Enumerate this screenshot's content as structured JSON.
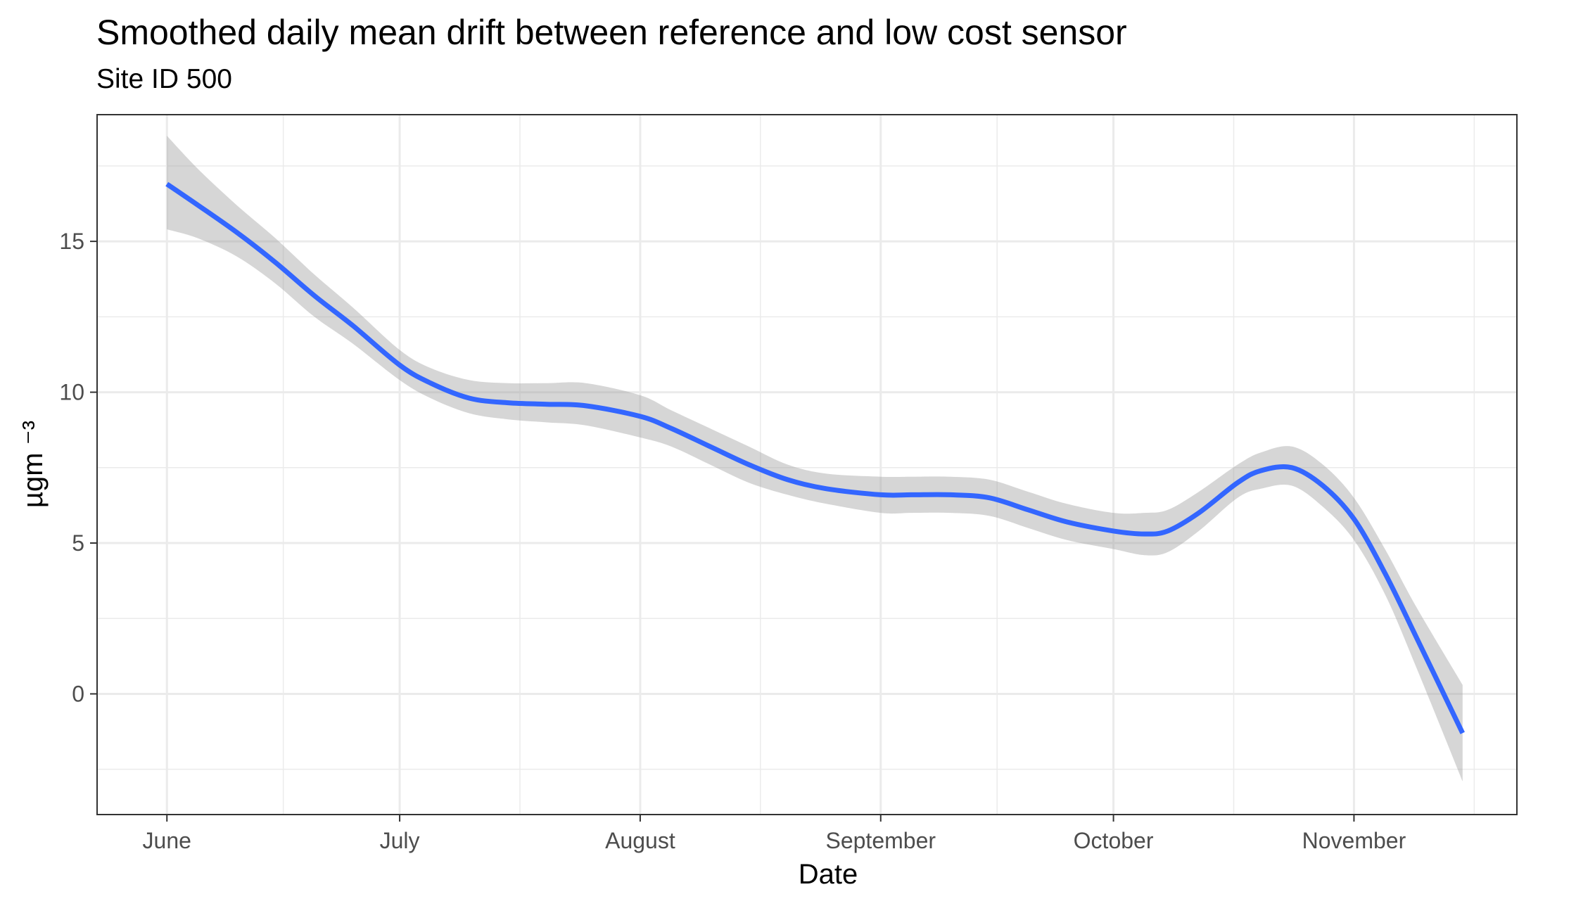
{
  "chart_data": {
    "type": "line",
    "title": "Smoothed daily mean drift between reference and low cost sensor",
    "subtitle": "Site ID 500",
    "xlabel": "Date",
    "ylabel": "µgm ⁻³",
    "x_tick_labels": [
      "June",
      "July",
      "August",
      "September",
      "October",
      "November"
    ],
    "x_ticks": [
      "2020-06-01",
      "2020-07-01",
      "2020-08-01",
      "2020-09-01",
      "2020-10-01",
      "2020-11-01"
    ],
    "xlim": [
      "2020-05-23",
      "2020-11-22"
    ],
    "y_ticks": [
      0,
      5,
      10,
      15
    ],
    "ylim": [
      -4,
      19.2
    ],
    "grid": true,
    "series": [
      {
        "color": "#3366FF",
        "band_color": "#999999",
        "points": [
          {
            "x": "2020-06-01",
            "y": 16.9,
            "lo": 15.4,
            "hi": 18.5
          },
          {
            "x": "2020-06-05",
            "y": 16.2,
            "lo": 15.1,
            "hi": 17.4
          },
          {
            "x": "2020-06-10",
            "y": 15.3,
            "lo": 14.5,
            "hi": 16.2
          },
          {
            "x": "2020-06-15",
            "y": 14.3,
            "lo": 13.6,
            "hi": 15.1
          },
          {
            "x": "2020-06-20",
            "y": 13.2,
            "lo": 12.5,
            "hi": 13.9
          },
          {
            "x": "2020-06-25",
            "y": 12.2,
            "lo": 11.6,
            "hi": 12.8
          },
          {
            "x": "2020-07-01",
            "y": 10.9,
            "lo": 10.4,
            "hi": 11.4
          },
          {
            "x": "2020-07-05",
            "y": 10.3,
            "lo": 9.8,
            "hi": 10.8
          },
          {
            "x": "2020-07-10",
            "y": 9.8,
            "lo": 9.3,
            "hi": 10.4
          },
          {
            "x": "2020-07-15",
            "y": 9.65,
            "lo": 9.1,
            "hi": 10.3
          },
          {
            "x": "2020-07-20",
            "y": 9.6,
            "lo": 9.0,
            "hi": 10.3
          },
          {
            "x": "2020-07-25",
            "y": 9.55,
            "lo": 8.9,
            "hi": 10.3
          },
          {
            "x": "2020-08-01",
            "y": 9.2,
            "lo": 8.5,
            "hi": 9.9
          },
          {
            "x": "2020-08-05",
            "y": 8.8,
            "lo": 8.2,
            "hi": 9.4
          },
          {
            "x": "2020-08-10",
            "y": 8.2,
            "lo": 7.6,
            "hi": 8.8
          },
          {
            "x": "2020-08-15",
            "y": 7.6,
            "lo": 7.0,
            "hi": 8.2
          },
          {
            "x": "2020-08-20",
            "y": 7.1,
            "lo": 6.6,
            "hi": 7.6
          },
          {
            "x": "2020-08-25",
            "y": 6.8,
            "lo": 6.3,
            "hi": 7.3
          },
          {
            "x": "2020-09-01",
            "y": 6.6,
            "lo": 6.0,
            "hi": 7.2
          },
          {
            "x": "2020-09-05",
            "y": 6.6,
            "lo": 6.0,
            "hi": 7.2
          },
          {
            "x": "2020-09-10",
            "y": 6.6,
            "lo": 6.0,
            "hi": 7.2
          },
          {
            "x": "2020-09-15",
            "y": 6.5,
            "lo": 5.9,
            "hi": 7.1
          },
          {
            "x": "2020-09-20",
            "y": 6.1,
            "lo": 5.5,
            "hi": 6.7
          },
          {
            "x": "2020-09-25",
            "y": 5.7,
            "lo": 5.1,
            "hi": 6.3
          },
          {
            "x": "2020-10-01",
            "y": 5.4,
            "lo": 4.8,
            "hi": 6.0
          },
          {
            "x": "2020-10-05",
            "y": 5.3,
            "lo": 4.6,
            "hi": 6.0
          },
          {
            "x": "2020-10-08",
            "y": 5.4,
            "lo": 4.7,
            "hi": 6.1
          },
          {
            "x": "2020-10-12",
            "y": 6.0,
            "lo": 5.4,
            "hi": 6.7
          },
          {
            "x": "2020-10-17",
            "y": 7.0,
            "lo": 6.5,
            "hi": 7.6
          },
          {
            "x": "2020-10-20",
            "y": 7.4,
            "lo": 6.8,
            "hi": 8.0
          },
          {
            "x": "2020-10-24",
            "y": 7.5,
            "lo": 6.9,
            "hi": 8.2
          },
          {
            "x": "2020-10-28",
            "y": 6.9,
            "lo": 6.2,
            "hi": 7.6
          },
          {
            "x": "2020-11-01",
            "y": 5.8,
            "lo": 5.1,
            "hi": 6.5
          },
          {
            "x": "2020-11-05",
            "y": 4.0,
            "lo": 3.3,
            "hi": 4.8
          },
          {
            "x": "2020-11-09",
            "y": 1.9,
            "lo": 0.9,
            "hi": 2.9
          },
          {
            "x": "2020-11-15",
            "y": -1.3,
            "lo": -2.9,
            "hi": 0.3
          }
        ]
      }
    ]
  }
}
